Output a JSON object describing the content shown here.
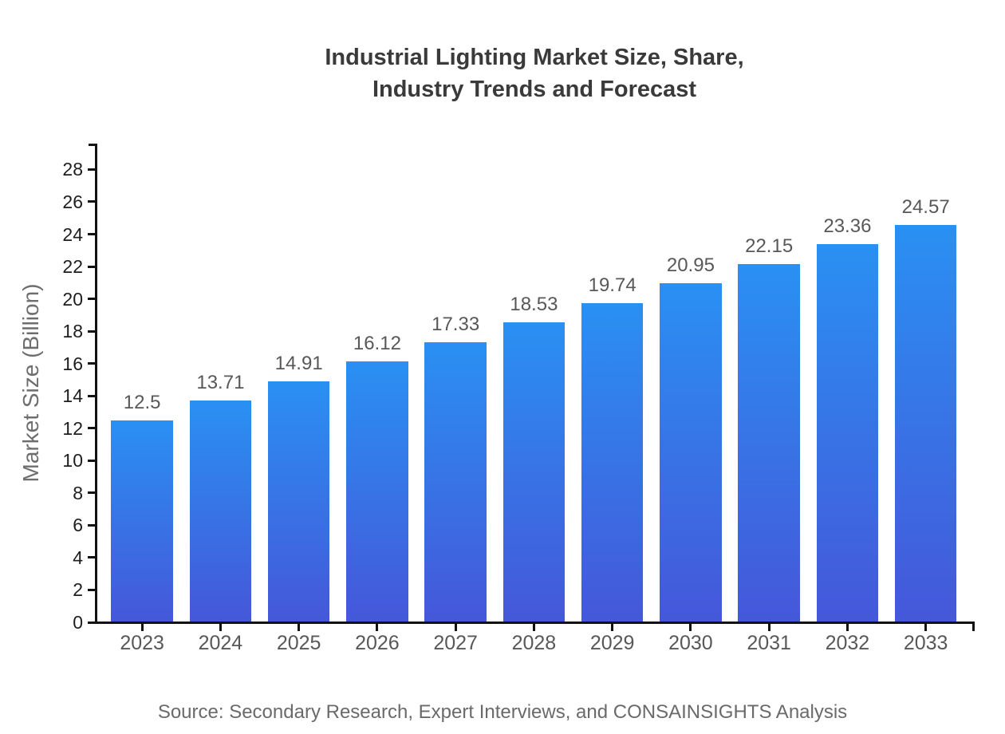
{
  "title": {
    "line1": "Industrial Lighting Market Size, Share,",
    "line2": "Industry Trends and Forecast"
  },
  "source_text": "Source: Secondary Research, Expert Interviews, and CONSAINSIGHTS Analysis",
  "chart_data": {
    "type": "bar",
    "title": "Industrial Lighting Market Size, Share, Industry Trends and Forecast",
    "categories": [
      "2023",
      "2024",
      "2025",
      "2026",
      "2027",
      "2028",
      "2029",
      "2030",
      "2031",
      "2032",
      "2033"
    ],
    "values": [
      12.5,
      13.71,
      14.91,
      16.12,
      17.33,
      18.53,
      19.74,
      20.95,
      22.15,
      23.36,
      24.57
    ],
    "value_labels": [
      "12.5",
      "13.71",
      "14.91",
      "16.12",
      "17.33",
      "18.53",
      "19.74",
      "20.95",
      "22.15",
      "23.36",
      "24.57"
    ],
    "xlabel": "",
    "ylabel": "Market Size (Billion)",
    "ylim": [
      0,
      29.6
    ],
    "ytick_step": 2,
    "ytick_max": 28,
    "ytick_labels": [
      "0",
      "2",
      "4",
      "6",
      "8",
      "10",
      "12",
      "14",
      "16",
      "18",
      "20",
      "22",
      "24",
      "26",
      "28"
    ],
    "grid": false,
    "legend": "none",
    "colors": {
      "bar_gradient_top": "#2a90f2",
      "bar_gradient_bottom": "#4557da",
      "axis": "#121212",
      "ytick_label": "#1e1e1e",
      "xtick_label": "#58585a",
      "value_label": "#58585a",
      "title": "#3a3a3a",
      "ylabel": "#6e6e6e",
      "source": "#6a6a6a",
      "background": "#ffffff"
    }
  }
}
